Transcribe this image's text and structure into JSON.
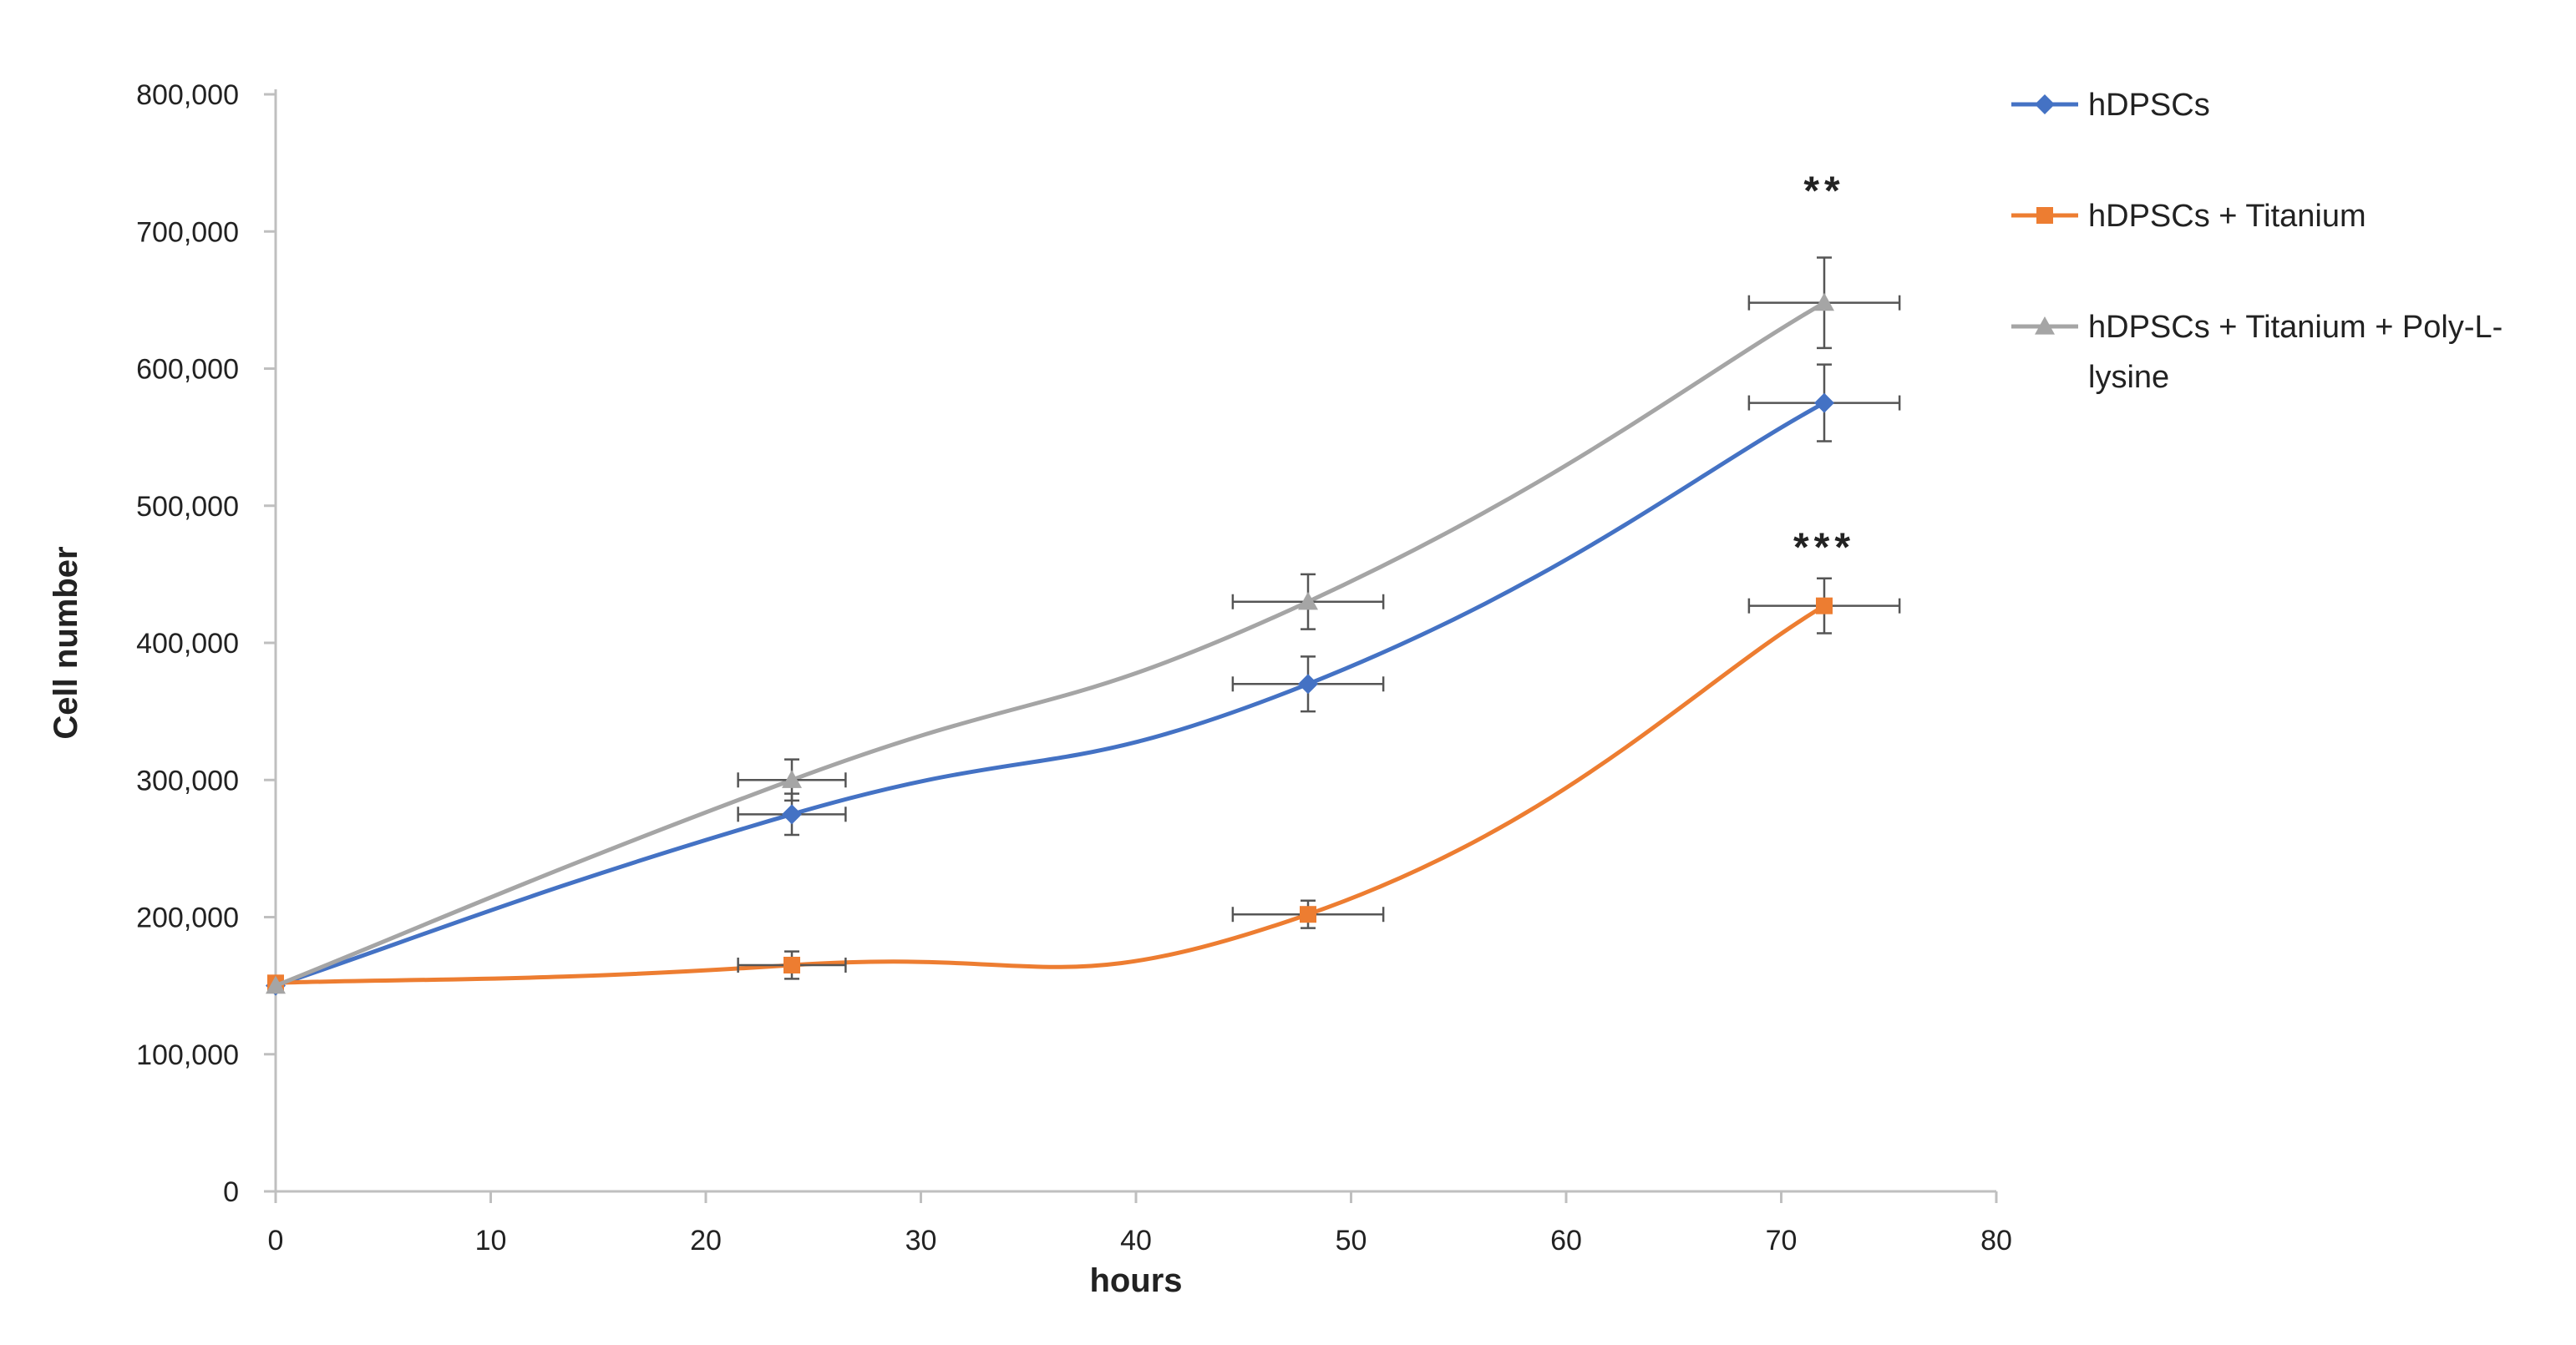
{
  "chart_data": {
    "type": "line",
    "title": "",
    "xlabel": "hours",
    "ylabel": "Cell number",
    "xlim": [
      0,
      80
    ],
    "ylim": [
      0,
      800000
    ],
    "x_ticks": [
      0,
      10,
      20,
      30,
      40,
      50,
      60,
      70,
      80
    ],
    "x_tick_labels": [
      "0",
      "10",
      "20",
      "30",
      "40",
      "50",
      "60",
      "70",
      "80"
    ],
    "y_ticks": [
      0,
      100000,
      200000,
      300000,
      400000,
      500000,
      600000,
      700000,
      800000
    ],
    "y_tick_labels": [
      "0",
      "100,000",
      "200,000",
      "300,000",
      "400,000",
      "500,000",
      "600,000",
      "700,000",
      "800,000"
    ],
    "grid": false,
    "legend_position": "top-right",
    "x": [
      0,
      24,
      48,
      72
    ],
    "series": [
      {
        "name": "hDPSCs",
        "legend_lines": [
          "hDPSCs"
        ],
        "color": "#4472C4",
        "marker": "diamond",
        "values": [
          150000,
          275000,
          370000,
          575000
        ],
        "y_err": [
          0,
          15000,
          20000,
          28000
        ],
        "x_err": [
          0,
          2.5,
          3.5,
          3.5
        ]
      },
      {
        "name": "hDPSCs + Titanium",
        "legend_lines": [
          "hDPSCs + Titanium"
        ],
        "color": "#ED7D31",
        "marker": "square",
        "values": [
          152000,
          165000,
          202000,
          427000
        ],
        "y_err": [
          0,
          10000,
          10000,
          20000
        ],
        "x_err": [
          0,
          2.5,
          3.5,
          3.5
        ]
      },
      {
        "name": "hDPSCs + Titanium + Poly-L-lysine",
        "legend_lines": [
          "hDPSCs + Titanium + Poly-L-",
          "lysine"
        ],
        "color": "#A5A5A5",
        "marker": "triangle",
        "values": [
          150000,
          300000,
          430000,
          648000
        ],
        "y_err": [
          0,
          15000,
          20000,
          33000
        ],
        "x_err": [
          0,
          2.5,
          3.5,
          3.5
        ]
      }
    ],
    "annotations": [
      {
        "text": "**",
        "x": 72,
        "y": 720000
      },
      {
        "text": "***",
        "x": 72,
        "y": 460000
      }
    ]
  }
}
